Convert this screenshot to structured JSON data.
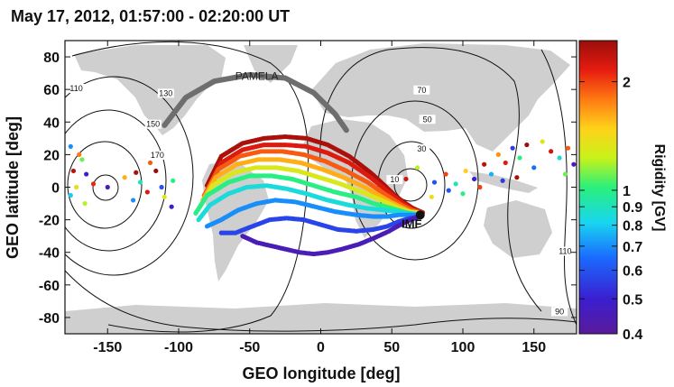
{
  "chart_data": {
    "type": "scatter",
    "title": "May 17, 2012, 01:57:00 - 02:20:00 UT",
    "xlabel": "GEO longitude [deg]",
    "ylabel": "GEO latitude [deg]",
    "xlim": [
      -180,
      180
    ],
    "ylim": [
      -90,
      90
    ],
    "xticks": [
      -150,
      -100,
      -50,
      0,
      50,
      100,
      150
    ],
    "yticks": [
      80,
      60,
      40,
      20,
      0,
      -20,
      -40,
      -60,
      -80
    ],
    "colorbar": {
      "label": "Rigidity [GV]",
      "scale": "log",
      "range": [
        0.4,
        2.6
      ],
      "ticks": [
        {
          "value": 2,
          "label": "2"
        },
        {
          "value": 1,
          "label": "1"
        },
        {
          "value": 0.9,
          "label": "0.9"
        },
        {
          "value": 0.8,
          "label": "0.8"
        },
        {
          "value": 0.7,
          "label": "0.7"
        },
        {
          "value": 0.6,
          "label": "0.6"
        },
        {
          "value": 0.5,
          "label": "0.5"
        },
        {
          "value": 0.4,
          "label": "0.4"
        }
      ]
    },
    "contour_labels": [
      {
        "text": "110",
        "lon": -172,
        "lat": 59
      },
      {
        "text": "130",
        "lon": -109,
        "lat": 56
      },
      {
        "text": "150",
        "lon": -118,
        "lat": 37
      },
      {
        "text": "170",
        "lon": -115,
        "lat": 18
      },
      {
        "text": "70",
        "lon": 71,
        "lat": 58
      },
      {
        "text": "50",
        "lon": 75,
        "lat": 40
      },
      {
        "text": "30",
        "lon": 71,
        "lat": 22
      },
      {
        "text": "10",
        "lon": 52,
        "lat": 3
      },
      {
        "text": "110",
        "lon": 172,
        "lat": -41
      },
      {
        "text": "90",
        "lon": 168,
        "lat": -78
      }
    ],
    "annotations": [
      {
        "text": "PAMELA",
        "lon": -45,
        "lat": 66
      },
      {
        "text": "IMF",
        "lon": 64,
        "lat": -25
      }
    ],
    "pamela_track": {
      "lon": [
        -110,
        -95,
        -75,
        -50,
        -25,
        -5,
        10,
        18
      ],
      "lat": [
        38,
        55,
        65,
        69,
        67,
        58,
        45,
        35
      ]
    },
    "imf_point": {
      "lon": 70,
      "lat": -17
    },
    "bands": [
      {
        "rigidity": 2.5,
        "lon": [
          -80,
          -70,
          -55,
          -40,
          -25,
          -10,
          5,
          20,
          35,
          45,
          52,
          58,
          65,
          73
        ],
        "lat": [
          1,
          19,
          27,
          30,
          31,
          30,
          26,
          19,
          9,
          1,
          -5,
          -9,
          -13,
          -16
        ]
      },
      {
        "rigidity": 2.2,
        "lon": [
          -80,
          -70,
          -55,
          -40,
          -25,
          -10,
          5,
          20,
          35,
          45,
          52,
          58,
          65,
          73
        ],
        "lat": [
          -2,
          15,
          23,
          26,
          26,
          25,
          21,
          15,
          6,
          -1,
          -6,
          -10,
          -14,
          -16
        ]
      },
      {
        "rigidity": 1.9,
        "lon": [
          -82,
          -72,
          -57,
          -42,
          -27,
          -12,
          3,
          18,
          33,
          43,
          50,
          57,
          64,
          72
        ],
        "lat": [
          -5,
          11,
          19,
          22,
          22,
          20,
          16,
          10,
          3,
          -3,
          -7,
          -11,
          -14,
          -16
        ]
      },
      {
        "rigidity": 1.6,
        "lon": [
          -83,
          -74,
          -59,
          -44,
          -29,
          -14,
          1,
          16,
          31,
          41,
          49,
          56,
          63,
          72
        ],
        "lat": [
          -8,
          6,
          14,
          17,
          17,
          15,
          11,
          6,
          0,
          -5,
          -9,
          -12,
          -15,
          -16
        ]
      },
      {
        "rigidity": 1.3,
        "lon": [
          -85,
          -76,
          -61,
          -46,
          -31,
          -16,
          -1,
          14,
          29,
          40,
          48,
          55,
          62,
          71
        ],
        "lat": [
          -12,
          1,
          9,
          12,
          12,
          10,
          6,
          2,
          -3,
          -7,
          -10,
          -13,
          -15,
          -16
        ]
      },
      {
        "rigidity": 1.0,
        "lon": [
          -88,
          -80,
          -65,
          -50,
          -35,
          -20,
          -5,
          10,
          25,
          37,
          46,
          54,
          62,
          71
        ],
        "lat": [
          -16,
          -5,
          3,
          7,
          7,
          5,
          1,
          -3,
          -6,
          -10,
          -12,
          -14,
          -16,
          -17
        ]
      },
      {
        "rigidity": 0.85,
        "lon": [
          -86,
          -78,
          -65,
          -52,
          -38,
          -24,
          -10,
          5,
          20,
          33,
          44,
          53,
          61,
          70
        ],
        "lat": [
          -20,
          -11,
          -4,
          0,
          1,
          -1,
          -4,
          -8,
          -11,
          -13,
          -14,
          -15,
          -16,
          -17
        ]
      },
      {
        "rigidity": 0.7,
        "lon": [
          -80,
          -70,
          -58,
          -45,
          -32,
          -18,
          -4,
          10,
          25,
          37,
          47,
          55,
          62,
          70
        ],
        "lat": [
          -24,
          -20,
          -14,
          -10,
          -8,
          -9,
          -12,
          -15,
          -17,
          -18,
          -18,
          -17,
          -17,
          -17
        ]
      },
      {
        "rigidity": 0.57,
        "lon": [
          -70,
          -60,
          -48,
          -36,
          -24,
          -12,
          0,
          12,
          25,
          37,
          47,
          55,
          63,
          70
        ],
        "lat": [
          -28,
          -28,
          -24,
          -20,
          -19,
          -20,
          -23,
          -26,
          -27,
          -26,
          -24,
          -21,
          -19,
          -18
        ]
      },
      {
        "rigidity": 0.45,
        "lon": [
          -55,
          -45,
          -35,
          -25,
          -15,
          -5,
          5,
          15,
          27,
          38,
          48,
          56,
          63,
          70
        ],
        "lat": [
          -30,
          -34,
          -36,
          -38,
          -40,
          -41,
          -40,
          -38,
          -35,
          -31,
          -27,
          -23,
          -20,
          -18
        ]
      }
    ],
    "scatter_points": [
      {
        "lon": -176,
        "lat": 25,
        "r": 0.7
      },
      {
        "lon": -170,
        "lat": 20,
        "r": 1.8
      },
      {
        "lon": -168,
        "lat": 17,
        "r": 1.1
      },
      {
        "lon": -174,
        "lat": 10,
        "r": 2.4
      },
      {
        "lon": -165,
        "lat": 8,
        "r": 0.5
      },
      {
        "lon": -172,
        "lat": 0,
        "r": 1.4
      },
      {
        "lon": -160,
        "lat": 2,
        "r": 2.1
      },
      {
        "lon": -176,
        "lat": -5,
        "r": 0.8
      },
      {
        "lon": -166,
        "lat": -10,
        "r": 1.2
      },
      {
        "lon": -150,
        "lat": 0,
        "r": 0.45
      },
      {
        "lon": -138,
        "lat": 6,
        "r": 1.6
      },
      {
        "lon": -130,
        "lat": 9,
        "r": 2.5
      },
      {
        "lon": -127,
        "lat": 3,
        "r": 0.9
      },
      {
        "lon": -122,
        "lat": -3,
        "r": 2.2
      },
      {
        "lon": -112,
        "lat": 0,
        "r": 0.6
      },
      {
        "lon": -110,
        "lat": -6,
        "r": 1.3
      },
      {
        "lon": -116,
        "lat": 10,
        "r": 2.6
      },
      {
        "lon": -104,
        "lat": 4,
        "r": 1.0
      },
      {
        "lon": -105,
        "lat": -12,
        "r": 0.5
      },
      {
        "lon": -132,
        "lat": -8,
        "r": 0.7
      },
      {
        "lon": -120,
        "lat": 15,
        "r": 1.9
      },
      {
        "lon": 60,
        "lat": 5,
        "r": 2.3
      },
      {
        "lon": 68,
        "lat": 12,
        "r": 1.2
      },
      {
        "lon": 80,
        "lat": 3,
        "r": 0.6
      },
      {
        "lon": 88,
        "lat": 8,
        "r": 2.0
      },
      {
        "lon": 95,
        "lat": 2,
        "r": 0.9
      },
      {
        "lon": 102,
        "lat": 10,
        "r": 1.5
      },
      {
        "lon": 108,
        "lat": 5,
        "r": 0.5
      },
      {
        "lon": 115,
        "lat": 14,
        "r": 2.4
      },
      {
        "lon": 120,
        "lat": 8,
        "r": 0.75
      },
      {
        "lon": 125,
        "lat": 20,
        "r": 1.7
      },
      {
        "lon": 130,
        "lat": 15,
        "r": 2.2
      },
      {
        "lon": 135,
        "lat": 24,
        "r": 0.55
      },
      {
        "lon": 140,
        "lat": 18,
        "r": 1.0
      },
      {
        "lon": 145,
        "lat": 26,
        "r": 2.6
      },
      {
        "lon": 150,
        "lat": 12,
        "r": 0.65
      },
      {
        "lon": 156,
        "lat": 28,
        "r": 1.3
      },
      {
        "lon": 162,
        "lat": 22,
        "r": 2.3
      },
      {
        "lon": 168,
        "lat": 18,
        "r": 0.85
      },
      {
        "lon": 174,
        "lat": 24,
        "r": 1.9
      },
      {
        "lon": 178,
        "lat": 14,
        "r": 0.45
      },
      {
        "lon": 172,
        "lat": 8,
        "r": 1.1
      },
      {
        "lon": 100,
        "lat": -4,
        "r": 1.0
      },
      {
        "lon": 112,
        "lat": 0,
        "r": 2.0
      },
      {
        "lon": 90,
        "lat": -2,
        "r": 0.6
      },
      {
        "lon": 78,
        "lat": -6,
        "r": 1.4
      },
      {
        "lon": 128,
        "lat": 4,
        "r": 0.55
      },
      {
        "lon": 138,
        "lat": 6,
        "r": 2.5
      }
    ]
  }
}
